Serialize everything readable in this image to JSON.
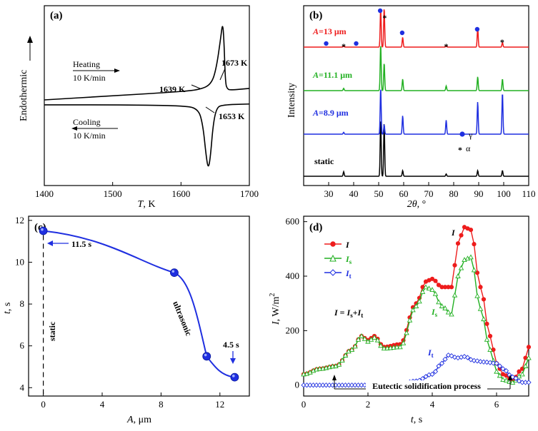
{
  "chart_data": [
    {
      "panel": "(a)",
      "type": "line",
      "xlabel_var": "T",
      "xlabel_unit": ", K",
      "ylabel": "Endothermic",
      "xlim": [
        1400,
        1700
      ],
      "xticks": [
        "1400",
        "1500",
        "1600",
        "1700"
      ],
      "series": [
        {
          "x": [
            1400,
            1500,
            1600,
            1630,
            1645,
            1652,
            1658,
            1661,
            1663,
            1665,
            1668,
            1673,
            1700
          ],
          "y": [
            0.0,
            0.05,
            0.1,
            0.13,
            0.2,
            0.4,
            0.75,
            0.95,
            0.7,
            0.2,
            0.13,
            0.12,
            0.14
          ]
        },
        {
          "x": [
            1400,
            1500,
            1600,
            1625,
            1632,
            1637,
            1640,
            1643,
            1647,
            1652,
            1660,
            1700
          ],
          "y": [
            -0.06,
            -0.06,
            -0.07,
            -0.1,
            -0.3,
            -0.7,
            -0.84,
            -0.7,
            -0.3,
            -0.1,
            -0.06,
            -0.05
          ]
        }
      ],
      "annotations": {
        "heating": "Heating",
        "heating_rate": "10 K/min",
        "cooling": "Cooling",
        "cooling_rate": "10 K/min",
        "t_onset_heat": "1639 K",
        "t_peak_heat": "1673 K",
        "t_onset_cool": "1653 K"
      }
    },
    {
      "panel": "(b)",
      "type": "line",
      "xlabel_var": "2θ",
      "xlabel_unit": ", °",
      "ylabel": "Intensity",
      "xlim": [
        20,
        110
      ],
      "xticks": [
        "30",
        "40",
        "50",
        "60",
        "70",
        "80",
        "90",
        "100",
        "110"
      ],
      "series": [
        {
          "name": "static",
          "color": "#000000",
          "peaks": [
            [
              36,
              0.08
            ],
            [
              50.8,
              1.0
            ],
            [
              52.2,
              0.95
            ],
            [
              59.6,
              0.1
            ],
            [
              77,
              0.04
            ],
            [
              89.6,
              0.1
            ],
            [
              99.5,
              0.1
            ]
          ]
        },
        {
          "name_var": "A",
          "name_value": "=8.9 μm",
          "color": "#1f2fe0",
          "peaks": [
            [
              36,
              0.04
            ],
            [
              50.8,
              1.0
            ],
            [
              52.2,
              0.2
            ],
            [
              59.6,
              0.4
            ],
            [
              77,
              0.3
            ],
            [
              89.6,
              0.7
            ],
            [
              99.5,
              0.9
            ]
          ]
        },
        {
          "name_var": "A",
          "name_value": "=11.1 μm",
          "color": "#22b022",
          "peaks": [
            [
              36,
              0.05
            ],
            [
              50.8,
              1.0
            ],
            [
              52.2,
              0.6
            ],
            [
              59.6,
              0.25
            ],
            [
              77,
              0.1
            ],
            [
              89.6,
              0.3
            ],
            [
              99.5,
              0.25
            ]
          ]
        },
        {
          "name_var": "A",
          "name_value": "=13 μm",
          "color": "#ee1c1c",
          "peaks": [
            [
              36,
              0.03
            ],
            [
              50.8,
              1.0
            ],
            [
              52.2,
              1.0
            ],
            [
              59.6,
              0.25
            ],
            [
              77,
              0.03
            ],
            [
              89.6,
              0.5
            ],
            [
              99.5,
              0.12
            ]
          ]
        }
      ],
      "legend": {
        "gamma": "γ",
        "alpha": "α",
        "gamma_color": "#1f2fe0",
        "alpha_color": "#ee1c1c"
      }
    },
    {
      "panel": "(c)",
      "type": "scatter",
      "xlabel_var": "A",
      "xlabel_unit": ", μm",
      "ylabel_var": "t",
      "ylabel_unit": ", s",
      "xlim": [
        -1,
        14
      ],
      "ylim": [
        3.6,
        12.2
      ],
      "xticks": [
        "0",
        "4",
        "8",
        "12"
      ],
      "yticks": [
        "4",
        "6",
        "8",
        "10",
        "12"
      ],
      "x": [
        0,
        8.9,
        11.1,
        13
      ],
      "y": [
        11.5,
        9.5,
        5.5,
        4.5
      ],
      "color": "#1f2fe0",
      "labels": {
        "static": "static",
        "ultrasonic": "ultrasonic",
        "max": "11.5 s",
        "min": "4.5 s"
      }
    },
    {
      "panel": "(d)",
      "type": "line",
      "xlabel_var": "t",
      "xlabel_unit": ", s",
      "ylabel_var": "I",
      "ylabel_unit": ", W/m",
      "ylabel_sup": "2",
      "xlim": [
        0,
        7
      ],
      "ylim": [
        -40,
        620
      ],
      "xticks": [
        "0",
        "2",
        "4",
        "6"
      ],
      "yticks": [
        "0",
        "200",
        "400",
        "600"
      ],
      "series": [
        {
          "name": "I",
          "color": "#ee1c1c",
          "marker": "circle",
          "x": [
            0,
            0.5,
            1.0,
            1.5,
            1.8,
            2.0,
            2.2,
            2.5,
            3.0,
            3.5,
            3.8,
            4.0,
            4.3,
            4.6,
            4.8,
            5.0,
            5.2,
            5.5,
            5.8,
            6.0,
            6.2,
            6.5,
            6.8,
            7.0
          ],
          "y": [
            40,
            60,
            70,
            130,
            180,
            165,
            180,
            140,
            150,
            300,
            380,
            390,
            360,
            360,
            520,
            580,
            570,
            360,
            180,
            80,
            40,
            20,
            60,
            140
          ]
        },
        {
          "name": "I",
          "sub": "s",
          "color": "#22b022",
          "marker": "triangle",
          "x": [
            0,
            0.5,
            1.0,
            1.5,
            1.8,
            2.0,
            2.2,
            2.5,
            3.0,
            3.5,
            3.8,
            4.0,
            4.3,
            4.6,
            4.8,
            5.0,
            5.2,
            5.5,
            5.8,
            6.0,
            6.2,
            6.5,
            6.8,
            7.0
          ],
          "y": [
            40,
            60,
            70,
            130,
            180,
            160,
            175,
            135,
            140,
            290,
            360,
            350,
            290,
            260,
            400,
            460,
            470,
            280,
            130,
            50,
            20,
            10,
            40,
            100
          ]
        },
        {
          "name": "I",
          "sub": "t",
          "color": "#1f2fe0",
          "marker": "diamond",
          "x": [
            0,
            0.5,
            1.0,
            1.5,
            2.0,
            2.5,
            3.0,
            3.5,
            4.0,
            4.3,
            4.5,
            4.8,
            5.0,
            5.3,
            5.6,
            6.0,
            6.2,
            6.5,
            6.8,
            7.0
          ],
          "y": [
            0,
            0,
            0,
            0,
            0,
            0,
            5,
            15,
            40,
            80,
            110,
            100,
            105,
            90,
            85,
            80,
            60,
            30,
            10,
            10
          ]
        }
      ],
      "labels": {
        "eq_lhs": "I",
        "eq_mid": " = ",
        "eq_a": "I",
        "eq_a_sub": "s",
        "eq_plus": "+",
        "eq_b": "I",
        "eq_b_sub": "t",
        "lbl_I": "I",
        "lbl_Is": "I",
        "lbl_Is_sub": "s",
        "lbl_It": "I",
        "lbl_It_sub": "t",
        "process": "Eutectic solidification process"
      }
    }
  ]
}
